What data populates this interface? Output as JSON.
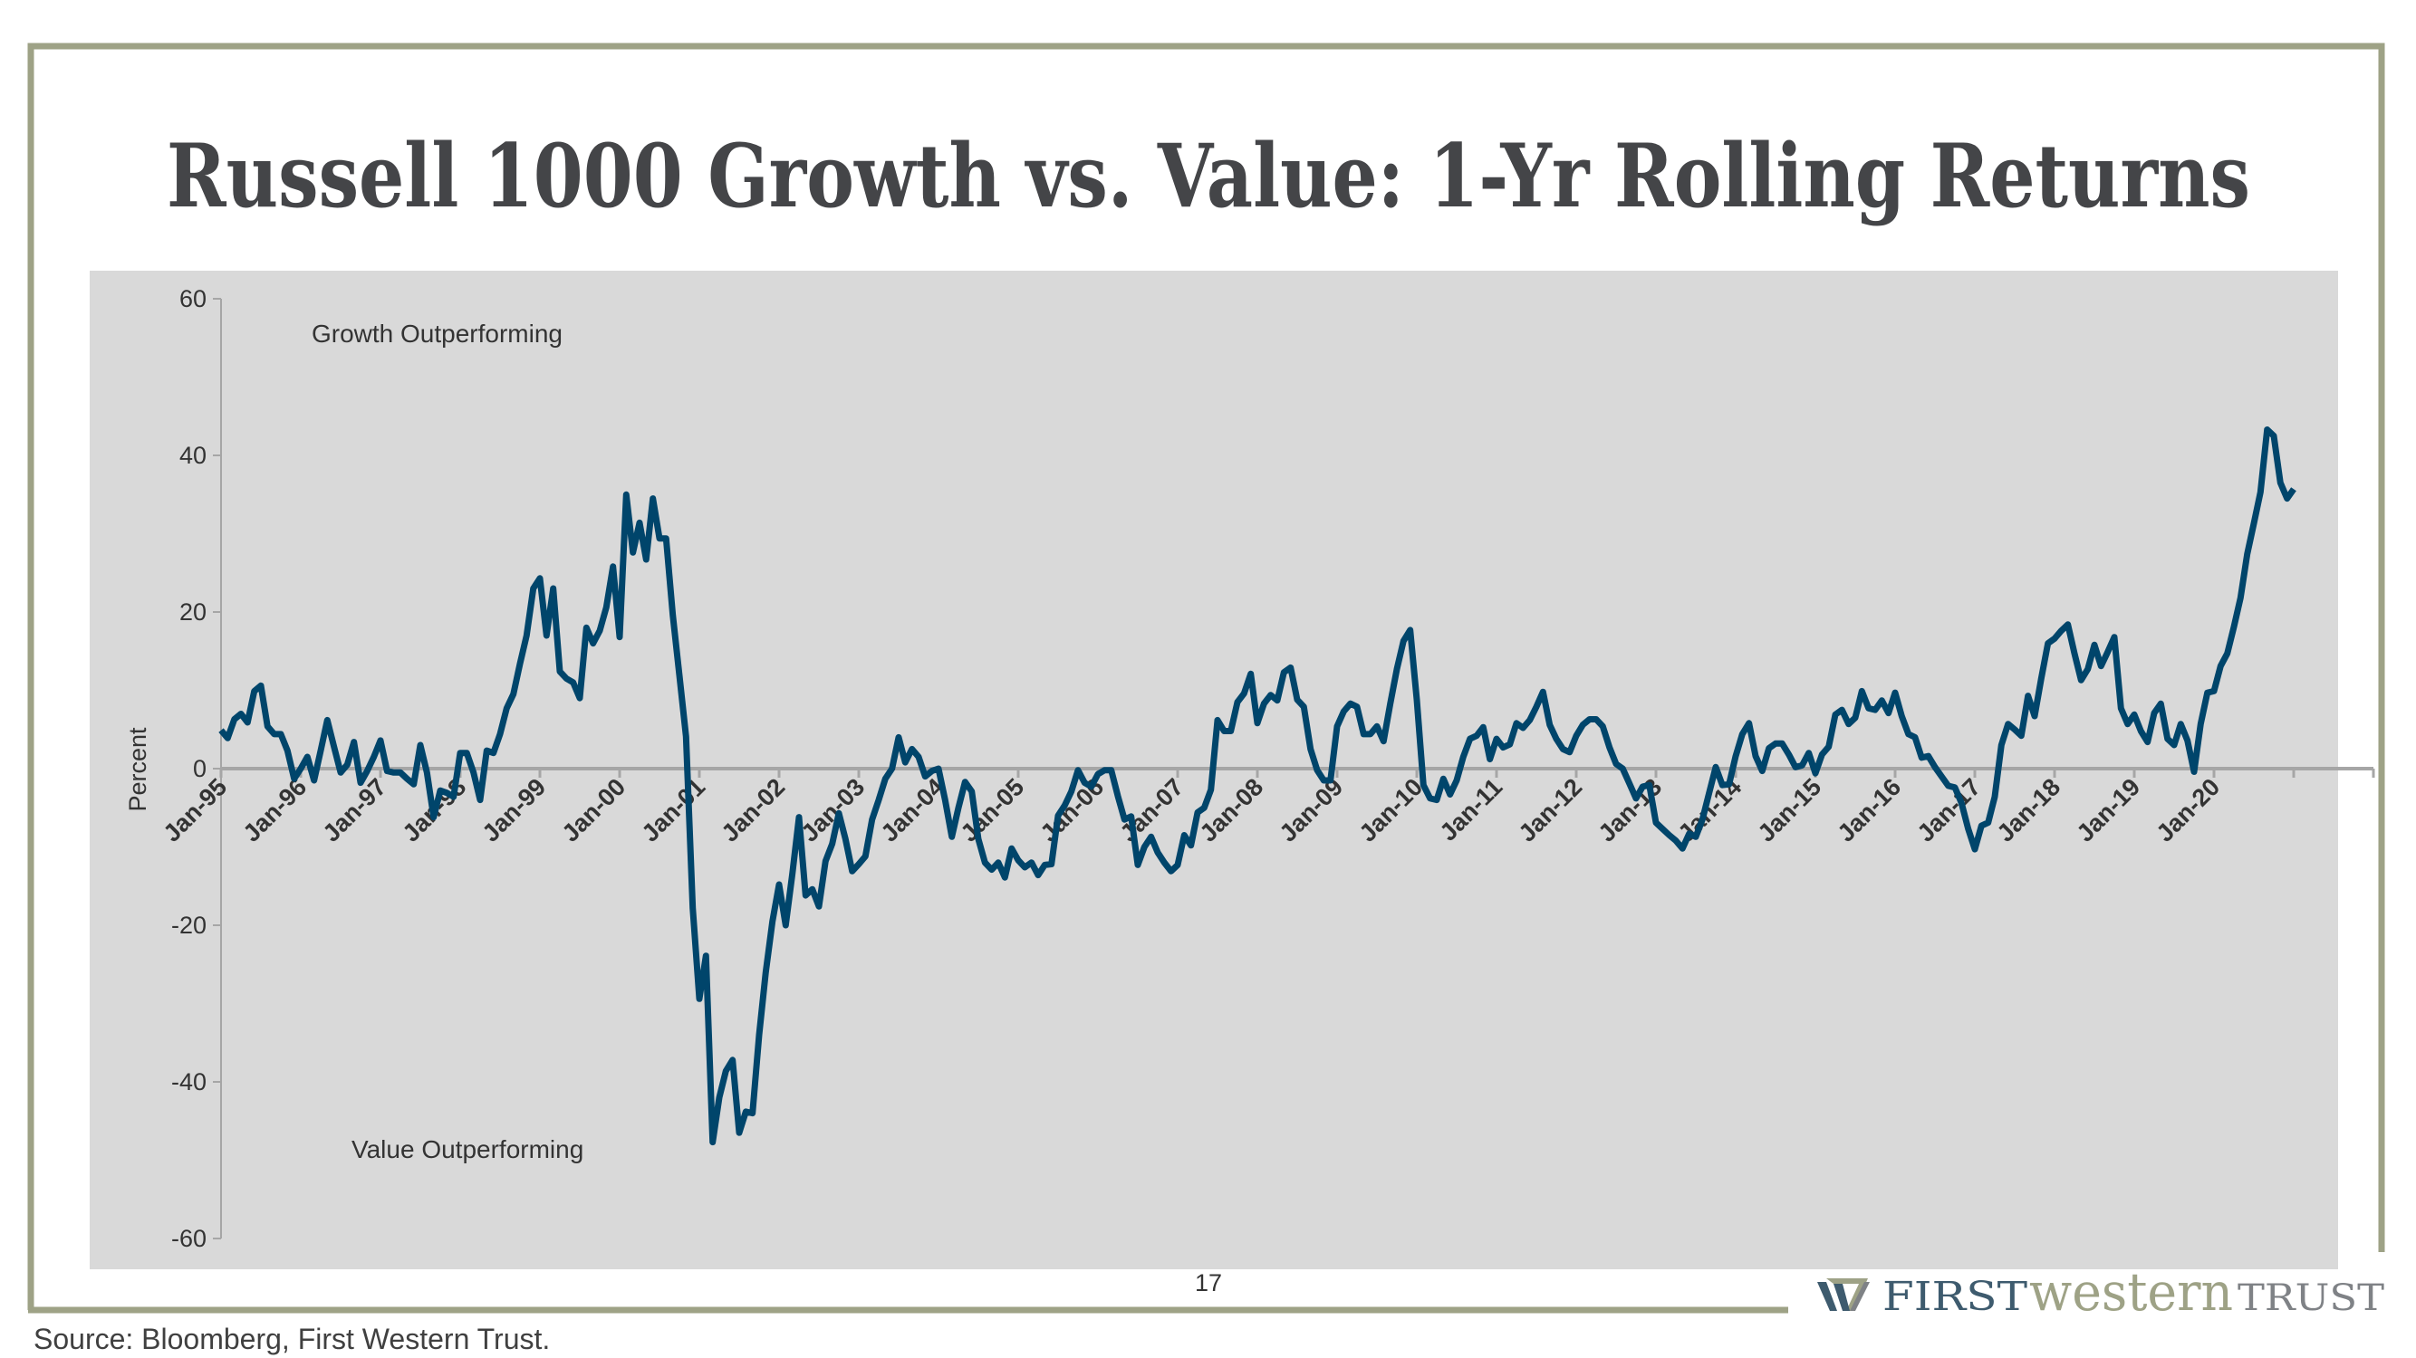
{
  "slide": {
    "title": "Russell 1000 Growth vs. Value: 1-Yr Rolling Returns",
    "page_number": "17",
    "source": "Source: Bloomberg, First Western Trust.",
    "logo": {
      "first": "FIRST",
      "western": "western",
      "trust": "TRUST",
      "icon": "w-monogram-icon"
    },
    "colors": {
      "frame": "#9ea286",
      "chart_bg": "#d9d9d9",
      "line": "#00456b",
      "logo_blue": "#3e5b6e",
      "logo_olive": "#9ea286",
      "logo_gray": "#7f8286"
    }
  },
  "chart_data": {
    "type": "line",
    "title": "",
    "ylabel": "Percent",
    "xlabel": "",
    "ylim": [
      -60,
      60
    ],
    "yticks": [
      60,
      40,
      20,
      0,
      -20,
      -40,
      -60
    ],
    "xtick_labels": [
      "Jan-95",
      "Jan-96",
      "Jan-97",
      "Jan-98",
      "Jan-99",
      "Jan-00",
      "Jan-01",
      "Jan-02",
      "Jan-03",
      "Jan-04",
      "Jan-05",
      "Jan-06",
      "Jan-07",
      "Jan-08",
      "Jan-09",
      "Jan-10",
      "Jan-11",
      "Jan-12",
      "Jan-13",
      "Jan-14",
      "Jan-15",
      "Jan-16",
      "Jan-17",
      "Jan-18",
      "Jan-19",
      "Jan-20"
    ],
    "x_range": [
      "Jan-95",
      "Jan-21"
    ],
    "frequency": "monthly",
    "start": "Jan-95",
    "grid": false,
    "annotations": {
      "top": "Growth Outperforming",
      "bottom": "Value Outperforming"
    },
    "values": [
      4.9,
      3.9,
      6.3,
      7,
      5.9,
      9.9,
      10.6,
      5.4,
      4.4,
      4.4,
      2.3,
      -1.3,
      0,
      1.5,
      -1.5,
      2.3,
      6.2,
      2.8,
      -0.5,
      0.5,
      3.4,
      -1.8,
      -0.3,
      1.5,
      3.6,
      -0.3,
      -0.5,
      -0.5,
      -1.3,
      -2,
      3,
      -0.5,
      -6.2,
      -2.8,
      -3.1,
      -3.6,
      2,
      2,
      -0.5,
      -4,
      2.3,
      2,
      4.4,
      7.7,
      9.5,
      13.4,
      17,
      23,
      24.3,
      17,
      23,
      12.4,
      11.5,
      11,
      9,
      18,
      16,
      17.6,
      20.6,
      25.8,
      16.8,
      35,
      27.6,
      31.4,
      26.7,
      34.5,
      29.4,
      29.4,
      19.6,
      11.9,
      4.1,
      -17.8,
      -29.4,
      -23.9,
      -47.7,
      -42,
      -38.6,
      -37.2,
      -46.5,
      -43.8,
      -44,
      -34,
      -26,
      -19.5,
      -14.8,
      -20,
      -13.4,
      -6.2,
      -16.2,
      -15.4,
      -17.6,
      -11.8,
      -9.6,
      -5.7,
      -9,
      -13.1,
      -12.2,
      -11.2,
      -6.5,
      -4,
      -1.3,
      0,
      4,
      0.8,
      2.5,
      1.5,
      -1,
      -0.3,
      0,
      -4,
      -8.7,
      -5,
      -1.7,
      -2.9,
      -9,
      -12,
      -12.9,
      -12,
      -13.9,
      -10.2,
      -11.7,
      -12.6,
      -12,
      -13.6,
      -12.3,
      -12.2,
      -6,
      -4.7,
      -2.9,
      -0.2,
      -1.8,
      -2.3,
      -0.7,
      -0.2,
      -0.2,
      -3.5,
      -6.5,
      -6.1,
      -12.3,
      -10,
      -8.7,
      -10.7,
      -12,
      -13.1,
      -12.3,
      -8.5,
      -9.8,
      -5.6,
      -5,
      -2.7,
      6.2,
      4.8,
      4.8,
      8.5,
      9.6,
      12.1,
      5.8,
      8.3,
      9.4,
      8.7,
      12.3,
      12.9,
      8.8,
      7.9,
      2.5,
      -0.2,
      -1.5,
      -1.5,
      5.4,
      7.3,
      8.3,
      7.9,
      4.4,
      4.4,
      5.4,
      3.5,
      8.3,
      12.7,
      16.3,
      17.7,
      8.8,
      -2.1,
      -3.8,
      -4,
      -1.3,
      -3.3,
      -1.5,
      1.5,
      3.8,
      4.2,
      5.3,
      1.2,
      3.8,
      2.7,
      3.1,
      5.8,
      5.2,
      6.2,
      7.9,
      9.8,
      5.6,
      3.8,
      2.5,
      2.1,
      4.2,
      5.6,
      6.3,
      6.3,
      5.4,
      2.7,
      0.6,
      0,
      -1.9,
      -3.8,
      -2.3,
      -2.1,
      -6.9,
      -7.7,
      -8.5,
      -9.2,
      -10.2,
      -8.3,
      -8.7,
      -6.5,
      -3.1,
      0.2,
      -2.1,
      -2,
      1.6,
      4.4,
      5.8,
      1.6,
      -0.3,
      2.6,
      3.2,
      3.2,
      1.8,
      0.2,
      0.4,
      2,
      -0.6,
      1.8,
      2.8,
      6.9,
      7.5,
      5.7,
      6.5,
      9.9,
      7.7,
      7.5,
      8.7,
      7.1,
      9.7,
      6.7,
      4.4,
      4,
      1.4,
      1.6,
      0.2,
      -1,
      -2.2,
      -2.4,
      -4.4,
      -7.7,
      -10.3,
      -7.3,
      -6.9,
      -3.6,
      3,
      5.7,
      5,
      4.2,
      9.3,
      6.7,
      11.5,
      16,
      16.6,
      17.6,
      18.4,
      14.7,
      11.3,
      12.7,
      15.8,
      13.1,
      14.9,
      16.8,
      7.7,
      5.7,
      6.9,
      4.8,
      3.4,
      7.1,
      8.3,
      3.8,
      3,
      5.7,
      3.6,
      -0.4,
      5.7,
      9.7,
      9.9,
      13.1,
      14.7,
      18.1,
      21.8,
      27.4,
      31.3,
      35.3,
      43.3,
      42.5,
      36.5,
      34.5,
      35.7
    ]
  }
}
